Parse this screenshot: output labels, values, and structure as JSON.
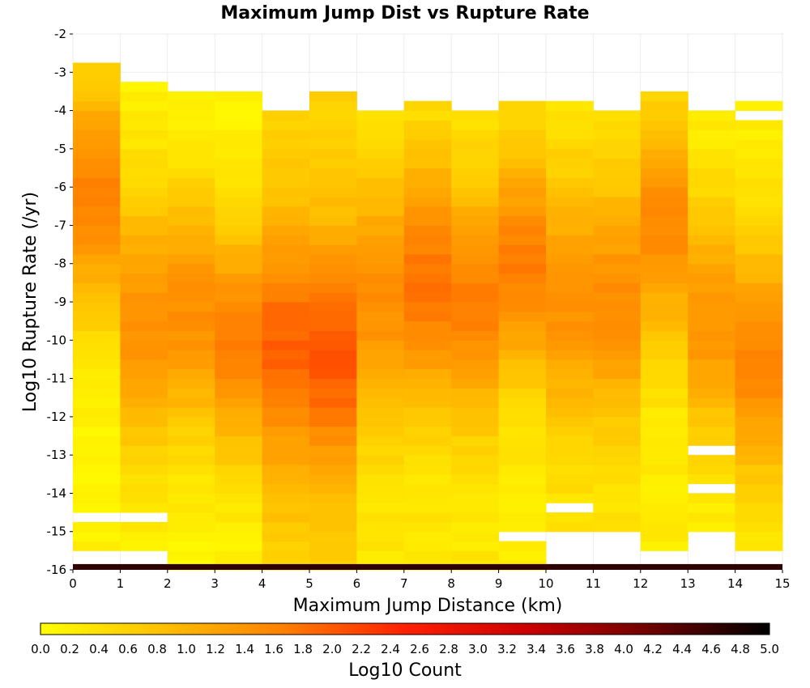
{
  "chart_data": {
    "type": "heatmap",
    "title": "Maximum Jump Dist vs Rupture Rate",
    "xlabel": "Maximum Jump Distance (km)",
    "ylabel": "Log10 Rupture Rate (/yr)",
    "xlim": [
      0,
      15
    ],
    "ylim": [
      -16,
      -2
    ],
    "x_ticks": [
      "0",
      "1",
      "2",
      "3",
      "4",
      "5",
      "6",
      "7",
      "8",
      "9",
      "10",
      "11",
      "12",
      "13",
      "14",
      "15"
    ],
    "y_ticks": [
      "-2",
      "-3",
      "-4",
      "-5",
      "-6",
      "-7",
      "-8",
      "-9",
      "-10",
      "-11",
      "-12",
      "-13",
      "-14",
      "-15",
      "-16"
    ],
    "x_bin_width": 1,
    "y_bin_height": 0.25,
    "y_bins_start": -16,
    "colorbar": {
      "label": "Log10 Count",
      "range": [
        0,
        5
      ],
      "ticks": [
        "0.0",
        "0.2",
        "0.4",
        "0.6",
        "0.8",
        "1.0",
        "1.2",
        "1.4",
        "1.6",
        "1.8",
        "2.0",
        "2.2",
        "2.4",
        "2.6",
        "2.8",
        "3.0",
        "3.2",
        "3.4",
        "3.6",
        "3.8",
        "4.0",
        "4.2",
        "4.4",
        "4.6",
        "4.8",
        "5.0"
      ],
      "colors": [
        "#ffff00",
        "#ffc000",
        "#ff8000",
        "#ff2000",
        "#cc0000",
        "#700000",
        "#000000"
      ]
    },
    "columns": [
      {
        "x_start": 0,
        "y_min": -15.75,
        "y_max": -2.75,
        "center": -6.2,
        "spread": 5.0,
        "peak": 1.65,
        "base": 0.15
      },
      {
        "x_start": 1,
        "y_min": -15.75,
        "y_max": -3.25,
        "center": -9.5,
        "spread": 5.5,
        "peak": 1.45,
        "base": 0.15
      },
      {
        "x_start": 2,
        "y_min": -16.0,
        "y_max": -3.5,
        "center": -9.3,
        "spread": 5.5,
        "peak": 1.45,
        "base": 0.1
      },
      {
        "x_start": 3,
        "y_min": -16.0,
        "y_max": -3.5,
        "center": -10.0,
        "spread": 5.0,
        "peak": 1.65,
        "base": 0.15
      },
      {
        "x_start": 4,
        "y_min": -16.0,
        "y_max": -4.0,
        "center": -10.2,
        "spread": 5.0,
        "peak": 1.95,
        "base": 0.6
      },
      {
        "x_start": 5,
        "y_min": -16.0,
        "y_max": -3.5,
        "center": -10.4,
        "spread": 5.0,
        "peak": 2.05,
        "base": 0.6
      },
      {
        "x_start": 6,
        "y_min": -16.0,
        "y_max": -4.0,
        "center": -9.0,
        "spread": 5.5,
        "peak": 1.45,
        "base": 0.3
      },
      {
        "x_start": 7,
        "y_min": -16.0,
        "y_max": -3.75,
        "center": -8.5,
        "spread": 5.5,
        "peak": 1.75,
        "base": 0.25
      },
      {
        "x_start": 8,
        "y_min": -16.0,
        "y_max": -4.0,
        "center": -9.0,
        "spread": 5.0,
        "peak": 1.65,
        "base": 0.3
      },
      {
        "x_start": 9,
        "y_min": -16.0,
        "y_max": -3.75,
        "center": -8.0,
        "spread": 5.0,
        "peak": 1.65,
        "base": 0.25
      },
      {
        "x_start": 10,
        "y_min": -15.0,
        "y_max": -3.75,
        "center": -9.0,
        "spread": 5.0,
        "peak": 1.45,
        "base": 0.35
      },
      {
        "x_start": 11,
        "y_min": -15.0,
        "y_max": -4.0,
        "center": -9.0,
        "spread": 5.0,
        "peak": 1.5,
        "base": 0.35
      },
      {
        "x_start": 12,
        "y_min": -15.5,
        "y_max": -3.5,
        "center": -7.0,
        "spread": 5.0,
        "peak": 1.5,
        "base": 0.25
      },
      {
        "x_start": 13,
        "y_min": -15.0,
        "y_max": -4.0,
        "center": -9.5,
        "spread": 5.0,
        "peak": 1.4,
        "base": 0.2
      },
      {
        "x_start": 14,
        "y_min": -15.5,
        "y_max": -3.75,
        "center": -10.5,
        "spread": 5.0,
        "peak": 1.6,
        "base": 0.2
      }
    ],
    "missing_bins": [
      {
        "x_start": 0,
        "y": -14.75
      },
      {
        "x_start": 1,
        "y": -14.75
      },
      {
        "x_start": 0,
        "y": -15.75
      },
      {
        "x_start": 1,
        "y": -15.75
      },
      {
        "x_start": 9,
        "y": -15.25
      },
      {
        "x_start": 10,
        "y": -14.5
      },
      {
        "x_start": 13,
        "y": -13.0
      },
      {
        "x_start": 13,
        "y": -14.0
      },
      {
        "x_start": 14,
        "y": -4.25
      }
    ],
    "bottom_row": {
      "y": -16.0,
      "height": 0.15,
      "value": 4.65
    }
  }
}
